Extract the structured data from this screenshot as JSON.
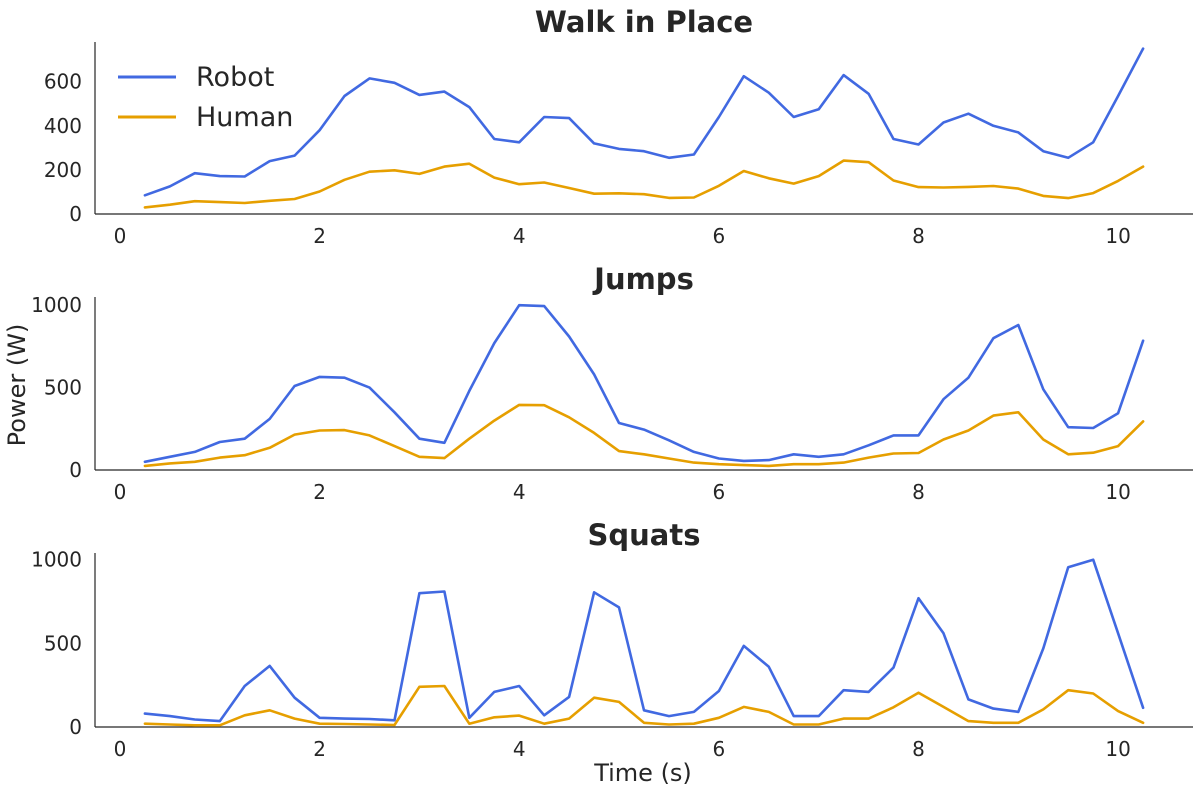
{
  "figure": {
    "ylabel": "Power (W)",
    "xlabel": "Time (s)"
  },
  "legend": {
    "items": [
      {
        "label": "Robot",
        "color": "#4169E1"
      },
      {
        "label": "Human",
        "color": "#E69F00"
      }
    ],
    "placement": "upper-left of first panel"
  },
  "chart_data": [
    {
      "type": "line",
      "title": "Walk in Place",
      "xlim": [
        -0.25,
        10.75
      ],
      "ylim": [
        0,
        780
      ],
      "xticks": [
        0,
        2,
        4,
        6,
        8,
        10
      ],
      "yticks": [
        0,
        200,
        400,
        600
      ],
      "grid": false,
      "x": [
        0.25,
        0.5,
        0.75,
        1.0,
        1.25,
        1.5,
        1.75,
        2.0,
        2.25,
        2.5,
        2.75,
        3.0,
        3.25,
        3.5,
        3.75,
        4.0,
        4.25,
        4.5,
        4.75,
        5.0,
        5.25,
        5.5,
        5.75,
        6.0,
        6.25,
        6.5,
        6.75,
        7.0,
        7.25,
        7.5,
        7.75,
        8.0,
        8.25,
        8.5,
        8.75,
        9.0,
        9.25,
        9.5,
        9.75,
        10.0,
        10.25
      ],
      "series": [
        {
          "name": "Robot",
          "color": "#4169E1",
          "values": [
            85,
            125,
            185,
            172,
            170,
            240,
            265,
            380,
            535,
            615,
            595,
            540,
            555,
            485,
            340,
            325,
            440,
            435,
            320,
            295,
            285,
            255,
            270,
            440,
            625,
            550,
            440,
            475,
            630,
            545,
            340,
            315,
            415,
            455,
            400,
            370,
            285,
            255,
            325,
            535,
            750
          ]
        },
        {
          "name": "Human",
          "color": "#E69F00",
          "values": [
            30,
            42,
            58,
            54,
            50,
            60,
            68,
            102,
            155,
            192,
            198,
            182,
            215,
            228,
            165,
            135,
            143,
            118,
            92,
            94,
            90,
            73,
            75,
            128,
            195,
            162,
            138,
            172,
            242,
            235,
            152,
            122,
            120,
            123,
            127,
            115,
            82,
            72,
            95,
            150,
            215
          ]
        }
      ]
    },
    {
      "type": "line",
      "title": "Jumps",
      "xlim": [
        -0.25,
        10.75
      ],
      "ylim": [
        0,
        1050
      ],
      "xticks": [
        0,
        2,
        4,
        6,
        8,
        10
      ],
      "yticks": [
        0,
        500,
        1000
      ],
      "grid": false,
      "x": [
        0.25,
        0.5,
        0.75,
        1.0,
        1.25,
        1.5,
        1.75,
        2.0,
        2.25,
        2.5,
        2.75,
        3.0,
        3.25,
        3.5,
        3.75,
        4.0,
        4.25,
        4.5,
        4.75,
        5.0,
        5.25,
        5.5,
        5.75,
        6.0,
        6.25,
        6.5,
        6.75,
        7.0,
        7.25,
        7.5,
        7.75,
        8.0,
        8.25,
        8.5,
        8.75,
        9.0,
        9.25,
        9.5,
        9.75,
        10.0,
        10.25
      ],
      "series": [
        {
          "name": "Robot",
          "color": "#4169E1",
          "values": [
            50,
            80,
            110,
            170,
            190,
            310,
            510,
            565,
            560,
            500,
            350,
            190,
            165,
            480,
            770,
            1000,
            995,
            810,
            580,
            285,
            245,
            180,
            110,
            70,
            55,
            60,
            95,
            80,
            95,
            150,
            210,
            210,
            430,
            560,
            800,
            880,
            490,
            260,
            255,
            345,
            785
          ]
        },
        {
          "name": "Human",
          "color": "#E69F00",
          "values": [
            25,
            40,
            50,
            75,
            90,
            135,
            215,
            240,
            242,
            210,
            145,
            80,
            72,
            190,
            300,
            395,
            393,
            320,
            225,
            115,
            95,
            70,
            45,
            35,
            30,
            25,
            35,
            35,
            45,
            75,
            100,
            103,
            185,
            240,
            330,
            350,
            185,
            95,
            105,
            145,
            295
          ]
        }
      ]
    },
    {
      "type": "line",
      "title": "Squats",
      "xlim": [
        -0.25,
        10.75
      ],
      "ylim": [
        0,
        1040
      ],
      "xticks": [
        0,
        2,
        4,
        6,
        8,
        10
      ],
      "yticks": [
        0,
        500,
        1000
      ],
      "grid": false,
      "x": [
        0.25,
        0.5,
        0.75,
        1.0,
        1.25,
        1.5,
        1.75,
        2.0,
        2.25,
        2.5,
        2.75,
        3.0,
        3.25,
        3.5,
        3.75,
        4.0,
        4.25,
        4.5,
        4.75,
        5.0,
        5.25,
        5.5,
        5.75,
        6.0,
        6.25,
        6.5,
        6.75,
        7.0,
        7.25,
        7.5,
        7.75,
        8.0,
        8.25,
        8.5,
        8.75,
        9.0,
        9.25,
        9.5,
        9.75,
        10.0,
        10.25
      ],
      "series": [
        {
          "name": "Robot",
          "color": "#4169E1",
          "values": [
            80,
            65,
            45,
            35,
            245,
            365,
            175,
            55,
            50,
            48,
            40,
            800,
            810,
            55,
            210,
            245,
            70,
            180,
            805,
            715,
            100,
            65,
            90,
            215,
            485,
            360,
            65,
            65,
            220,
            210,
            355,
            770,
            560,
            165,
            110,
            90,
            470,
            955,
            1000,
            560,
            115
          ]
        },
        {
          "name": "Human",
          "color": "#E69F00",
          "values": [
            20,
            15,
            10,
            10,
            70,
            100,
            50,
            20,
            18,
            15,
            12,
            240,
            245,
            20,
            58,
            68,
            20,
            50,
            175,
            150,
            25,
            15,
            20,
            55,
            120,
            90,
            15,
            15,
            50,
            50,
            118,
            205,
            120,
            35,
            25,
            25,
            105,
            220,
            200,
            95,
            25
          ]
        }
      ]
    }
  ]
}
